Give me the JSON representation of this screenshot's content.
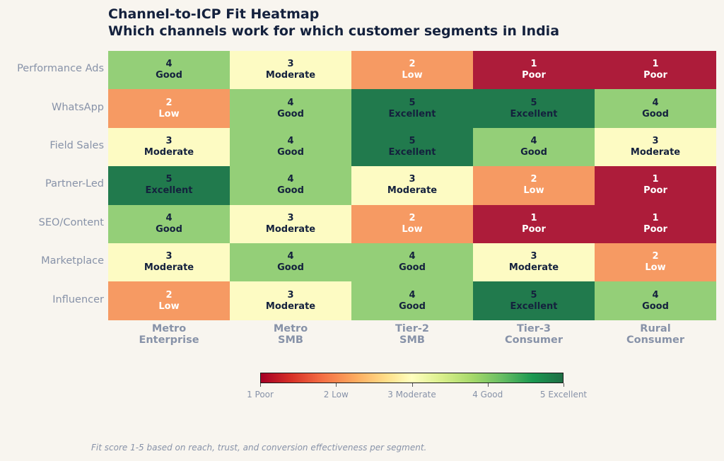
{
  "chart_data": {
    "type": "heatmap",
    "title": "Channel-to-ICP Fit Heatmap",
    "subtitle": "Which channels work for which customer segments in India",
    "rows": [
      "Performance Ads",
      "WhatsApp",
      "Field Sales",
      "Partner-Led",
      "SEO/Content",
      "Marketplace",
      "Influencer"
    ],
    "columns": [
      "Metro\nEnterprise",
      "Metro\nSMB",
      "Tier-2\nSMB",
      "Tier-3\nConsumer",
      "Rural\nConsumer"
    ],
    "column_lines": [
      [
        "Metro",
        "Enterprise"
      ],
      [
        "Metro",
        "SMB"
      ],
      [
        "Tier-2",
        "SMB"
      ],
      [
        "Tier-3",
        "Consumer"
      ],
      [
        "Rural",
        "Consumer"
      ]
    ],
    "values": [
      [
        4,
        3,
        2,
        1,
        1
      ],
      [
        2,
        4,
        5,
        5,
        4
      ],
      [
        3,
        4,
        5,
        4,
        3
      ],
      [
        5,
        4,
        3,
        2,
        1
      ],
      [
        4,
        3,
        2,
        1,
        1
      ],
      [
        3,
        4,
        4,
        3,
        2
      ],
      [
        2,
        3,
        4,
        5,
        4
      ]
    ],
    "score_labels": {
      "1": "Poor",
      "2": "Low",
      "3": "Moderate",
      "4": "Good",
      "5": "Excellent"
    },
    "colorbar": {
      "range": [
        1,
        5
      ],
      "ticks": [
        "1 Poor",
        "2 Low",
        "3 Moderate",
        "4 Good",
        "5 Excellent"
      ],
      "colormap": "RdYlGn",
      "placement": "bottom"
    },
    "footnote": "Fit score 1-5 based on reach, trust, and conversion effectiveness per segment."
  },
  "colors": {
    "1": "#ad1c3a",
    "2": "#f69a63",
    "3": "#fdfbc3",
    "4": "#94cf78",
    "5": "#217a4d",
    "text_dark": "#14213d",
    "text_light": "#ffffff"
  }
}
